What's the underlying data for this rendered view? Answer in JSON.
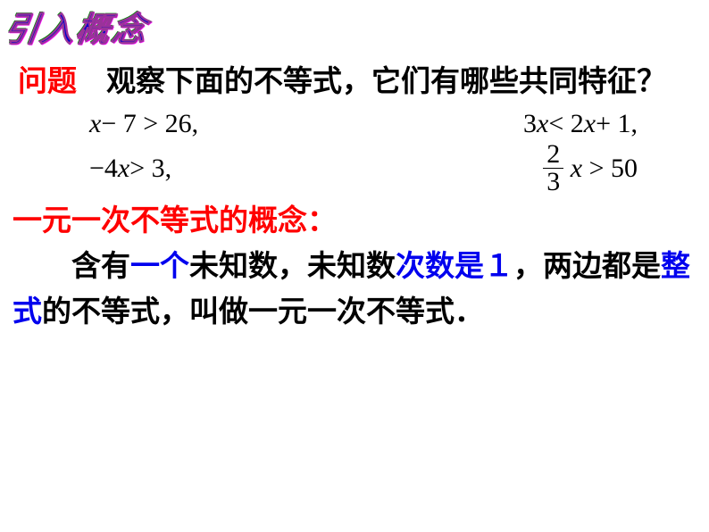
{
  "title": "引入概念",
  "question": {
    "label": "问题",
    "text_part1": "　观察下面的不等式，它们有哪些共同特征？"
  },
  "equations": {
    "eq1": "x − 7 > 26,",
    "eq2": "3x < 2x + 1,",
    "eq3": "−4x > 3,",
    "eq4_frac_num": "2",
    "eq4_frac_den": "3",
    "eq4_rest": " x > 50"
  },
  "definition": {
    "title": "一元一次不等式的概念：",
    "body_prefix": "含有",
    "hl1": "一个",
    "body_p2": "未知数，未知数",
    "hl2": "次数是１",
    "body_p3": "，两边都是",
    "hl3": "整式",
    "body_p4": "的不等式，叫做一元一次不等式．"
  },
  "colors": {
    "title_fill": "#0000cc",
    "title_stroke": "#993399",
    "red": "#ff0000",
    "blue": "#0000ee",
    "black": "#000000",
    "bg": "#ffffff"
  },
  "fontsizes": {
    "title": 38,
    "body": 33,
    "equations": 30
  }
}
